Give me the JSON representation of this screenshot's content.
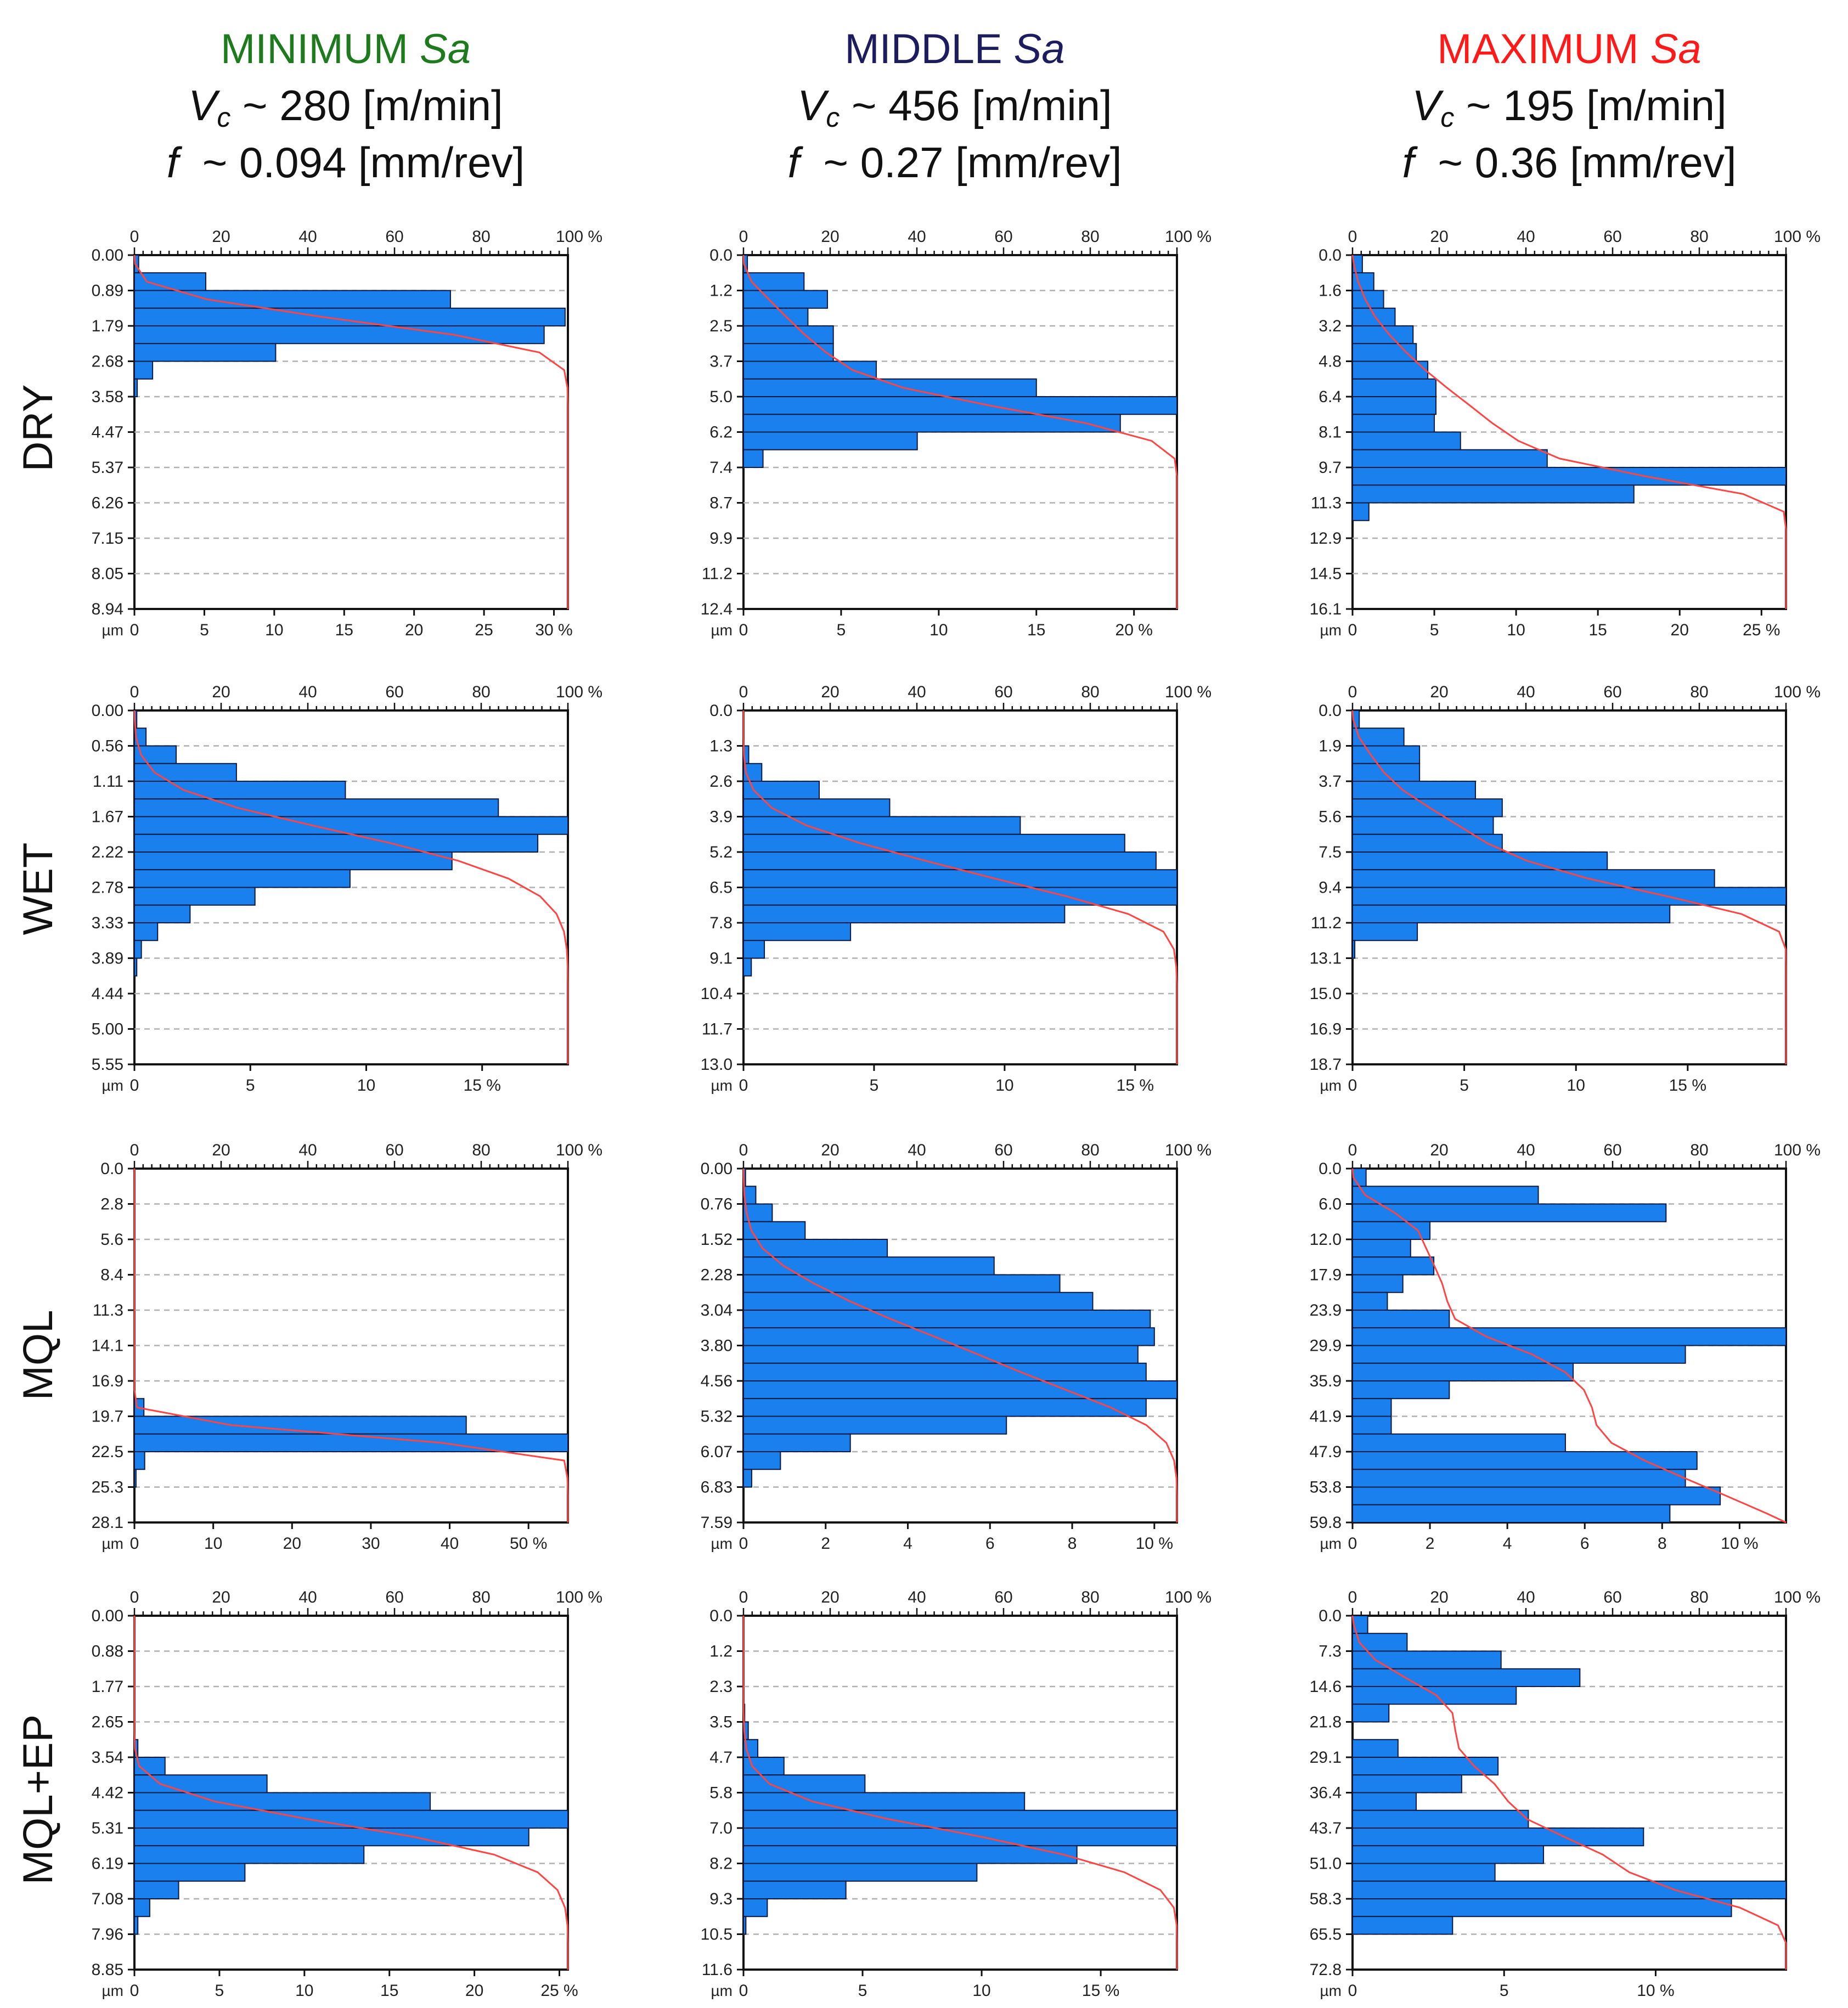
{
  "columns": [
    {
      "title": "MINIMUM ",
      "title_sa": "Sa",
      "color": "#1d7a1d",
      "vc_prefix": "V",
      "vc_sub": "c",
      "vc_value": " ~ 280 [m/min]",
      "f_prefix": "f",
      "f_value": "  ~ 0.094 [mm/rev]"
    },
    {
      "title": "MIDDLE ",
      "title_sa": "Sa",
      "color": "#1c1c5e",
      "vc_prefix": "V",
      "vc_sub": "c",
      "vc_value": " ~ 456 [m/min]",
      "f_prefix": "f",
      "f_value": "  ~ 0.27 [mm/rev]"
    },
    {
      "title": "MAXIMUM ",
      "title_sa": "Sa",
      "color": "#ff1a1a",
      "vc_prefix": "V",
      "vc_sub": "c",
      "vc_value": " ~ 195 [m/min]",
      "f_prefix": "f",
      "f_value": "  ~ 0.36 [mm/rev]"
    }
  ],
  "rows": [
    "DRY",
    "WET",
    "MQL",
    "MQL+EP"
  ],
  "colors": {
    "bar": "#1a80ee",
    "bar_edge": "#0a1a40",
    "curve": "#ff4444",
    "grid": "#b0b0b0",
    "axis": "#111111"
  },
  "chart_data": [
    {
      "type": "bar",
      "orientation": "horizontal",
      "row": "DRY",
      "column": "MINIMUM Sa",
      "ylabel": "µm",
      "y_ticks": [
        "0.00",
        "0.89",
        "1.79",
        "2.68",
        "3.58",
        "4.47",
        "5.37",
        "6.26",
        "7.15",
        "8.05",
        "8.94"
      ],
      "bottom_ticks": [
        "0",
        "5",
        "10",
        "15",
        "20",
        "25",
        "30 %"
      ],
      "bottom_max": 31,
      "top_ticks": [
        "0",
        "20",
        "40",
        "60",
        "80",
        "100 %"
      ],
      "values": [
        0.3,
        5.1,
        22.6,
        30.8,
        29.3,
        10.1,
        1.3,
        0.2,
        0,
        0,
        0,
        0,
        0,
        0,
        0,
        0,
        0,
        0,
        0,
        0
      ]
    },
    {
      "type": "bar",
      "orientation": "horizontal",
      "row": "DRY",
      "column": "MIDDLE Sa",
      "ylabel": "µm",
      "y_ticks": [
        "0.0",
        "1.2",
        "2.5",
        "3.7",
        "5.0",
        "6.2",
        "7.4",
        "8.7",
        "9.9",
        "11.2",
        "12.4"
      ],
      "bottom_ticks": [
        "0",
        "5",
        "10",
        "15",
        "20 %"
      ],
      "bottom_max": 22.2,
      "top_ticks": [
        "0",
        "20",
        "40",
        "60",
        "80",
        "100 %"
      ],
      "values": [
        0.2,
        3.1,
        4.3,
        3.3,
        4.6,
        4.6,
        6.8,
        15,
        22.2,
        19.3,
        8.9,
        1.0,
        0,
        0,
        0,
        0,
        0,
        0,
        0,
        0
      ]
    },
    {
      "type": "bar",
      "orientation": "horizontal",
      "row": "DRY",
      "column": "MAXIMUM Sa",
      "ylabel": "µm",
      "y_ticks": [
        "0.0",
        "1.6",
        "3.2",
        "4.8",
        "6.4",
        "8.1",
        "9.7",
        "11.3",
        "12.9",
        "14.5",
        "16.1"
      ],
      "bottom_ticks": [
        "0",
        "5",
        "10",
        "15",
        "20",
        "25 %"
      ],
      "bottom_max": 26.5,
      "top_ticks": [
        "0",
        "20",
        "40",
        "60",
        "80",
        "100 %"
      ],
      "values": [
        0.6,
        1.3,
        1.9,
        2.6,
        3.7,
        3.9,
        4.6,
        5.1,
        5.1,
        5.0,
        6.6,
        11.9,
        26.5,
        17.2,
        1.0,
        0,
        0,
        0,
        0,
        0
      ]
    },
    {
      "type": "bar",
      "orientation": "horizontal",
      "row": "WET",
      "column": "MINIMUM Sa",
      "ylabel": "µm",
      "y_ticks": [
        "0.00",
        "0.56",
        "1.11",
        "1.67",
        "2.22",
        "2.78",
        "3.33",
        "3.89",
        "4.44",
        "5.00",
        "5.55"
      ],
      "bottom_ticks": [
        "0",
        "5",
        "10",
        "15 %"
      ],
      "bottom_max": 18.7,
      "top_ticks": [
        "0",
        "20",
        "40",
        "60",
        "80",
        "100 %"
      ],
      "values": [
        0.1,
        0.5,
        1.8,
        4.4,
        9.1,
        15.7,
        18.7,
        17.4,
        13.7,
        9.3,
        5.2,
        2.4,
        1.0,
        0.3,
        0.1,
        0,
        0,
        0,
        0,
        0
      ]
    },
    {
      "type": "bar",
      "orientation": "horizontal",
      "row": "WET",
      "column": "MIDDLE Sa",
      "ylabel": "µm",
      "y_ticks": [
        "0.0",
        "1.3",
        "2.6",
        "3.9",
        "5.2",
        "6.5",
        "7.8",
        "9.1",
        "10.4",
        "11.7",
        "13.0"
      ],
      "bottom_ticks": [
        "0",
        "5",
        "10",
        "15 %"
      ],
      "bottom_max": 16.6,
      "top_ticks": [
        "0",
        "20",
        "40",
        "60",
        "80",
        "100 %"
      ],
      "values": [
        0,
        0,
        0.2,
        0.7,
        2.9,
        5.6,
        10.6,
        14.6,
        15.8,
        16.6,
        16.6,
        12.3,
        4.1,
        0.8,
        0.3,
        0,
        0,
        0,
        0,
        0
      ]
    },
    {
      "type": "bar",
      "orientation": "horizontal",
      "row": "WET",
      "column": "MAXIMUM Sa",
      "ylabel": "µm",
      "y_ticks": [
        "0.0",
        "1.9",
        "3.7",
        "5.6",
        "7.5",
        "9.4",
        "11.2",
        "13.1",
        "15.0",
        "16.9",
        "18.7"
      ],
      "bottom_ticks": [
        "0",
        "5",
        "10",
        "15 %"
      ],
      "bottom_max": 19.4,
      "top_ticks": [
        "0",
        "20",
        "40",
        "60",
        "80",
        "100 %"
      ],
      "values": [
        0.3,
        2.3,
        3.0,
        3.0,
        5.5,
        6.7,
        6.3,
        6.7,
        11.4,
        16.2,
        19.4,
        14.2,
        2.9,
        0.1,
        0,
        0,
        0,
        0,
        0,
        0
      ]
    },
    {
      "type": "bar",
      "orientation": "horizontal",
      "row": "MQL",
      "column": "MINIMUM Sa",
      "ylabel": "µm",
      "y_ticks": [
        "0.0",
        "2.8",
        "5.6",
        "8.4",
        "11.3",
        "14.1",
        "16.9",
        "19.7",
        "22.5",
        "25.3",
        "28.1"
      ],
      "bottom_ticks": [
        "0",
        "10",
        "20",
        "30",
        "40",
        "50 %"
      ],
      "bottom_max": 55,
      "top_ticks": [
        "0",
        "20",
        "40",
        "60",
        "80",
        "100 %"
      ],
      "values": [
        0,
        0,
        0,
        0,
        0,
        0,
        0,
        0,
        0,
        0,
        0,
        0,
        0,
        1.2,
        42.1,
        55,
        1.3,
        0.2,
        0,
        0
      ]
    },
    {
      "type": "bar",
      "orientation": "horizontal",
      "row": "MQL",
      "column": "MIDDLE Sa",
      "ylabel": "µm",
      "y_ticks": [
        "0.00",
        "0.76",
        "1.52",
        "2.28",
        "3.04",
        "3.80",
        "4.56",
        "5.32",
        "6.07",
        "6.83",
        "7.59"
      ],
      "bottom_ticks": [
        "0",
        "2",
        "4",
        "6",
        "8",
        "10 %"
      ],
      "bottom_max": 10.55,
      "top_ticks": [
        "0",
        "20",
        "40",
        "60",
        "80",
        "100 %"
      ],
      "values": [
        0.05,
        0.3,
        0.7,
        1.5,
        3.5,
        6.1,
        7.7,
        8.5,
        9.9,
        10.0,
        9.6,
        9.8,
        10.55,
        9.8,
        6.4,
        2.6,
        0.9,
        0.2,
        0,
        0
      ]
    },
    {
      "type": "bar",
      "orientation": "horizontal",
      "row": "MQL",
      "column": "MAXIMUM Sa",
      "ylabel": "µm",
      "y_ticks": [
        "0.0",
        "6.0",
        "12.0",
        "17.9",
        "23.9",
        "29.9",
        "35.9",
        "41.9",
        "47.9",
        "53.8",
        "59.8"
      ],
      "bottom_ticks": [
        "0",
        "2",
        "4",
        "6",
        "8",
        "10 %"
      ],
      "bottom_max": 11.2,
      "top_ticks": [
        "0",
        "20",
        "40",
        "60",
        "80",
        "100 %"
      ],
      "values": [
        0.35,
        4.8,
        8.1,
        2.0,
        1.5,
        2.1,
        1.3,
        0.9,
        2.5,
        11.2,
        8.6,
        5.7,
        2.5,
        1.0,
        1.0,
        5.5,
        8.9,
        8.6,
        9.5,
        8.2
      ]
    },
    {
      "type": "bar",
      "orientation": "horizontal",
      "row": "MQL+EP",
      "column": "MINIMUM Sa",
      "ylabel": "µm",
      "y_ticks": [
        "0.00",
        "0.88",
        "1.77",
        "2.65",
        "3.54",
        "4.42",
        "5.31",
        "6.19",
        "7.08",
        "7.96",
        "8.85"
      ],
      "bottom_ticks": [
        "0",
        "5",
        "10",
        "15",
        "20",
        "25 %"
      ],
      "bottom_max": 25.5,
      "top_ticks": [
        "0",
        "20",
        "40",
        "60",
        "80",
        "100 %"
      ],
      "values": [
        0,
        0,
        0,
        0,
        0,
        0,
        0,
        0.2,
        1.8,
        7.8,
        17.4,
        25.5,
        23.2,
        13.5,
        6.5,
        2.6,
        0.9,
        0.2,
        0,
        0
      ]
    },
    {
      "type": "bar",
      "orientation": "horizontal",
      "row": "MQL+EP",
      "column": "MIDDLE Sa",
      "ylabel": "µm",
      "y_ticks": [
        "0.0",
        "1.2",
        "2.3",
        "3.5",
        "4.7",
        "5.8",
        "7.0",
        "8.2",
        "9.3",
        "10.5",
        "11.6"
      ],
      "bottom_ticks": [
        "0",
        "5",
        "10",
        "15 %"
      ],
      "bottom_max": 18.2,
      "top_ticks": [
        "0",
        "20",
        "40",
        "60",
        "80",
        "100 %"
      ],
      "values": [
        0,
        0,
        0,
        0,
        0,
        0.05,
        0.2,
        0.6,
        1.7,
        5.1,
        11.8,
        18.2,
        18.2,
        14.0,
        9.8,
        4.3,
        1.0,
        0.1,
        0,
        0
      ]
    },
    {
      "type": "bar",
      "orientation": "horizontal",
      "row": "MQL+EP",
      "column": "MAXIMUM Sa",
      "ylabel": "µm",
      "y_ticks": [
        "0.0",
        "7.3",
        "14.6",
        "21.8",
        "29.1",
        "36.4",
        "43.7",
        "51.0",
        "58.3",
        "65.5",
        "72.8"
      ],
      "bottom_ticks": [
        "0",
        "5",
        "10 %"
      ],
      "bottom_max": 14.3,
      "top_ticks": [
        "0",
        "20",
        "40",
        "60",
        "80",
        "100 %"
      ],
      "values": [
        0.5,
        1.8,
        4.9,
        7.5,
        5.4,
        1.2,
        0,
        1.5,
        4.8,
        3.6,
        2.1,
        5.8,
        9.6,
        6.3,
        4.7,
        14.3,
        12.5,
        3.3,
        0,
        0
      ]
    }
  ]
}
